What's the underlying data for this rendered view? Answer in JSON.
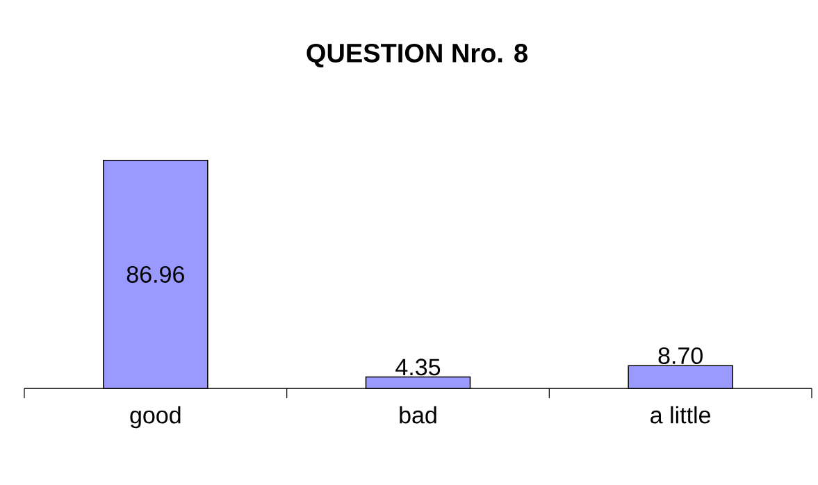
{
  "chart_data": {
    "type": "bar",
    "title": "QUESTION Nro. 8",
    "categories": [
      "good",
      "bad",
      "a little"
    ],
    "values": [
      86.96,
      4.35,
      8.7
    ],
    "value_labels": [
      "86.96",
      "4.35",
      "8.70"
    ],
    "color": "#9999ff",
    "tick_labels": "x"
  }
}
